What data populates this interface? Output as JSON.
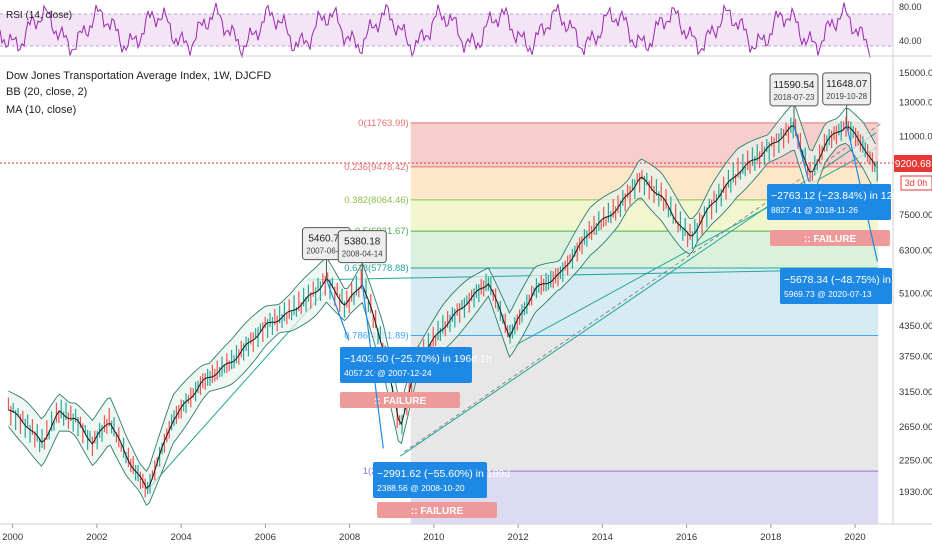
{
  "title_lines": [
    "Dow Jones Transportation Average Index, 1W, DJCFD",
    "BB (20, close, 2)",
    "MA (10, close)"
  ],
  "rsi": {
    "label": "RSI (14, close)",
    "ticks": [
      "80.00",
      "40.00"
    ],
    "levels": [
      70,
      30
    ],
    "colors": {
      "line": "#9c27b0",
      "band": "#f3e5f5"
    }
  },
  "price_tag": {
    "value": "9200.68",
    "sub": "3d 0h",
    "color": "#e53935"
  },
  "chart_data": {
    "type": "line",
    "xlabel": "",
    "ylabel": "",
    "x_ticks": [
      "2000",
      "2002",
      "2004",
      "2006",
      "2008",
      "2010",
      "2012",
      "2014",
      "2016",
      "2018",
      "2020"
    ],
    "y_ticks": [
      "15000.00",
      "13000.00",
      "11000.00",
      "9500.00",
      "7500.00",
      "6300.00",
      "5100.00",
      "4350.00",
      "3750.00",
      "3150.00",
      "2650.00",
      "2250.00",
      "1930.00"
    ],
    "ylim": [
      1650,
      16000
    ],
    "xlim": [
      1999.7,
      2020.9
    ],
    "yscale": "log",
    "series": [
      {
        "values_x": [
          1999.9,
          2000.3,
          2000.7,
          2001.1,
          2001.5,
          2001.9,
          2002.3,
          2002.7,
          2003.2,
          2003.8,
          2004.5,
          2005.2,
          2006.0,
          2006.6,
          2007.2,
          2007.45,
          2007.9,
          2008.3,
          2008.5,
          2008.8,
          2009.2,
          2009.6,
          2010.2,
          2010.8,
          2011.3,
          2011.8,
          2012.4,
          2013.0,
          2013.7,
          2014.4,
          2014.9,
          2015.4,
          2015.9,
          2016.1,
          2016.6,
          2017.2,
          2017.9,
          2018.55,
          2018.95,
          2019.3,
          2019.8,
          2020.2,
          2020.55
        ],
        "values_y": [
          2900,
          2700,
          2450,
          2850,
          2750,
          2450,
          2750,
          2300,
          1950,
          2750,
          3300,
          3650,
          4350,
          4650,
          5150,
          5460,
          4800,
          5380,
          4750,
          3900,
          2650,
          3650,
          4300,
          4900,
          5400,
          4150,
          5200,
          5600,
          6900,
          7800,
          9000,
          8200,
          7000,
          6700,
          7900,
          9200,
          10300,
          11590,
          9000,
          10700,
          11648,
          10500,
          9200
        ]
      }
    ],
    "fib_levels": [
      {
        "label": "0(11763.99)",
        "value": 11763.99
      },
      {
        "label": "0.236(9478.42)",
        "value": 9478.42
      },
      {
        "label": "0.382(8064.46)",
        "value": 8064.46
      },
      {
        "label": "0.5(6921.67)",
        "value": 6921.67
      },
      {
        "label": "0.618(5778.88)",
        "value": 5778.88
      },
      {
        "label": "0.786(4151.89)",
        "value": 4151.89
      },
      {
        "label": "1(2137.46)",
        "value": 2137.46
      }
    ],
    "peaks": [
      {
        "value": "5460.70",
        "date": "2007-06-11",
        "x": 2007.45,
        "y": 5460.7
      },
      {
        "value": "5380.18",
        "date": "2008-04-14",
        "x": 2008.3,
        "y": 5380.18
      },
      {
        "value": "11590.54",
        "date": "2018-07-23",
        "x": 2018.55,
        "y": 11590.54
      },
      {
        "value": "11648.07",
        "date": "2019-10-28",
        "x": 2019.8,
        "y": 11648.07
      }
    ],
    "drops": [
      {
        "line1": "−1403.50 (−25.70%) in 196d 1h",
        "line2": "4057.20 @ 2007-12-24",
        "x": 2007.98,
        "y": 4057.2
      },
      {
        "line1": "−2991.62 (−55.60%) in 189d",
        "line2": "2388.56 @ 2008-10-20",
        "x": 2008.8,
        "y": 2388.56
      },
      {
        "line1": "−2763.12 (−23.84%) in 126d 1h",
        "line2": "8827.41 @ 2018-11-26",
        "x": 2018.9,
        "y": 8827.41
      },
      {
        "line1": "−5678.34 (−48.75%) in 259d",
        "line2": "5969.73 @ 2020-07-13",
        "x": 2020.53,
        "y": 5969.73
      }
    ],
    "failure_label": ":: FAILURE"
  }
}
